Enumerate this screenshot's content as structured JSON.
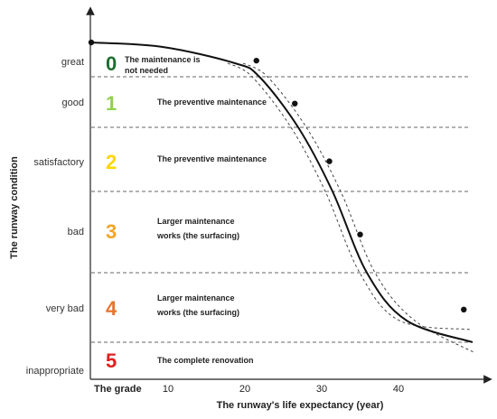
{
  "chart_data": {
    "type": "line",
    "xlabel": "The runway's life expectancy (year)",
    "ylabel": "The runway condition",
    "x_first_label": "The grade",
    "x_ticks": [
      10,
      20,
      30,
      40
    ],
    "xlim": [
      0,
      50
    ],
    "conditions": [
      "great",
      "good",
      "satisfactory",
      "bad",
      "very bad",
      "inappropriate"
    ],
    "grades": [
      {
        "grade": "0",
        "color": "#1e6f31",
        "desc": [
          "The maintenance is",
          "not needed"
        ]
      },
      {
        "grade": "1",
        "color": "#92d050",
        "desc": [
          "The preventive maintenance"
        ]
      },
      {
        "grade": "2",
        "color": "#ffd700",
        "desc": [
          "The preventive maintenance"
        ]
      },
      {
        "grade": "3",
        "color": "#f2a526",
        "desc": [
          "Larger maintenance",
          "works (the surfacing)"
        ]
      },
      {
        "grade": "4",
        "color": "#e8742f",
        "desc": [
          "Larger maintenance",
          "works (the surfacing)"
        ]
      },
      {
        "grade": "5",
        "color": "#e02020",
        "desc": [
          "The complete renovation"
        ]
      }
    ],
    "series": [
      {
        "x": [
          0,
          21.5,
          26.5,
          31,
          35,
          48.5
        ],
        "y": [
          0.0,
          0.53,
          1.53,
          2.53,
          3.53,
          4.53
        ]
      }
    ]
  }
}
